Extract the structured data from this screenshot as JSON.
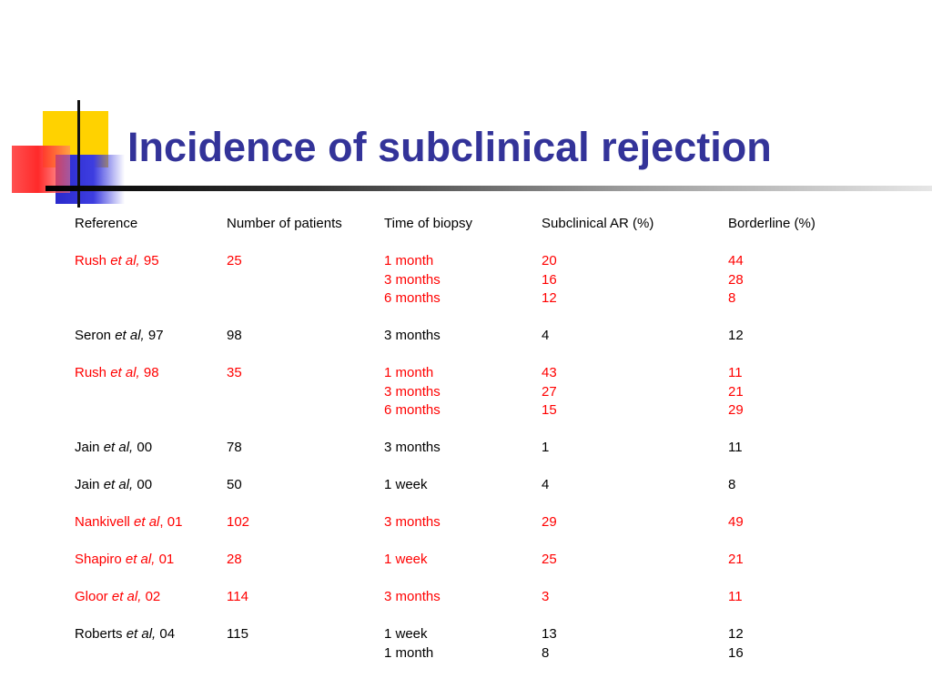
{
  "slide": {
    "title": "Incidence of subclinical rejection",
    "accent_color": "#333399",
    "highlight_color": "#ff0000"
  },
  "table": {
    "headers": {
      "reference": "Reference",
      "patients": "Number of patients",
      "time": "Time of biopsy",
      "subclinical": "Subclinical AR (%)",
      "borderline": "Borderline (%)"
    },
    "studies": [
      {
        "author": "Rush",
        "etal": "et al,",
        "year": "95",
        "highlight": true,
        "patients": "25",
        "rows": [
          {
            "time": "1 month",
            "ar": "20",
            "borderline": "44"
          },
          {
            "time": "3 months",
            "ar": "16",
            "borderline": "28"
          },
          {
            "time": "6 months",
            "ar": "12",
            "borderline": "8"
          }
        ]
      },
      {
        "author": "Seron",
        "etal": "et al,",
        "year": "97",
        "highlight": false,
        "patients": "98",
        "rows": [
          {
            "time": "3 months",
            "ar": "4",
            "borderline": "12"
          }
        ]
      },
      {
        "author": "Rush",
        "etal": "et al,",
        "year": "98",
        "highlight": true,
        "patients": "35",
        "rows": [
          {
            "time": "1 month",
            "ar": "43",
            "borderline": "11"
          },
          {
            "time": "3 months",
            "ar": "27",
            "borderline": "21"
          },
          {
            "time": "6 months",
            "ar": "15",
            "borderline": "29"
          }
        ]
      },
      {
        "author": "Jain",
        "etal": "et al,",
        "year": "00",
        "highlight": false,
        "patients": "78",
        "rows": [
          {
            "time": "3 months",
            "ar": "1",
            "borderline": "11"
          }
        ]
      },
      {
        "author": "Jain",
        "etal": "et al,",
        "year": "00",
        "highlight": false,
        "patients": "50",
        "rows": [
          {
            "time": "1 week",
            "ar": "4",
            "borderline": "8"
          }
        ]
      },
      {
        "author": "Nankivell",
        "etal": "et al",
        "year": ", 01",
        "highlight": true,
        "patients": "102",
        "rows": [
          {
            "time": "3 months",
            "ar": "29",
            "borderline": "49"
          }
        ]
      },
      {
        "author": "Shapiro",
        "etal": "et al,",
        "year": "01",
        "highlight": true,
        "patients": "28",
        "rows": [
          {
            "time": "1 week",
            "ar": "25",
            "borderline": "21"
          }
        ]
      },
      {
        "author": "Gloor",
        "etal": "et al,",
        "year": "02",
        "highlight": true,
        "patients": "114",
        "rows": [
          {
            "time": "3 months",
            "ar": "3",
            "borderline": "11"
          }
        ]
      },
      {
        "author": "Roberts",
        "etal": "et al,",
        "year": "04",
        "highlight": false,
        "patients": "115",
        "rows": [
          {
            "time": "1 week",
            "ar": "13",
            "borderline": "12"
          },
          {
            "time": "1 month",
            "ar": "8",
            "borderline": "16"
          }
        ]
      }
    ]
  }
}
